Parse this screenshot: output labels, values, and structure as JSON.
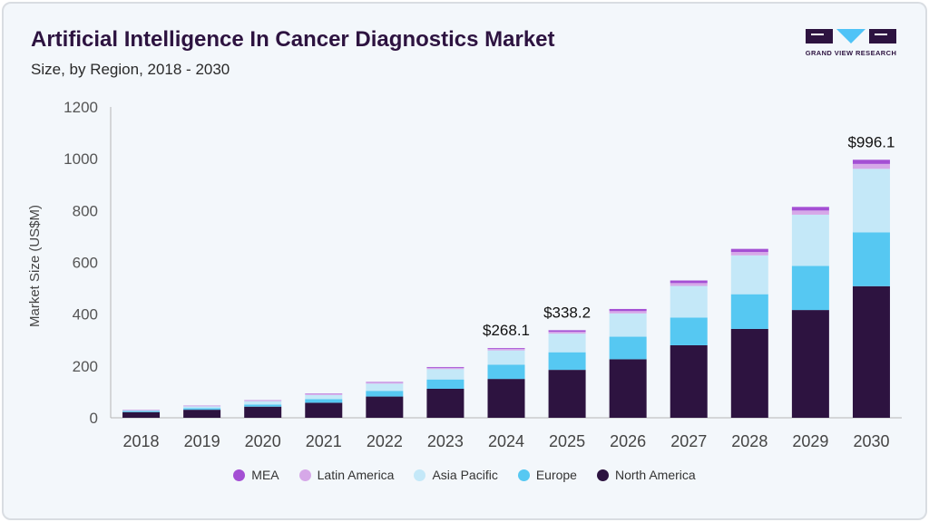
{
  "header": {
    "title": "Artificial Intelligence In Cancer Diagnostics Market",
    "subtitle": "Size, by Region, 2018 - 2030"
  },
  "logo": {
    "brand_text": "GRAND VIEW RESEARCH",
    "colors": {
      "primary": "#2d1340",
      "accent": "#4fc3f7"
    }
  },
  "chart_data": {
    "type": "bar",
    "stacked": true,
    "title": "Artificial Intelligence In Cancer Diagnostics Market",
    "subtitle": "Size, by Region, 2018 - 2030",
    "xlabel": "",
    "ylabel": "Market Size (US$M)",
    "ylim": [
      0,
      1200
    ],
    "yticks": [
      0,
      200,
      400,
      600,
      800,
      1000,
      1200
    ],
    "grid": false,
    "legend_position": "bottom",
    "categories": [
      "2018",
      "2019",
      "2020",
      "2021",
      "2022",
      "2023",
      "2024",
      "2025",
      "2026",
      "2027",
      "2028",
      "2029",
      "2030"
    ],
    "series": [
      {
        "name": "North America",
        "color": "#2d1340",
        "values": [
          22,
          31,
          43,
          58,
          82,
          112,
          150,
          185,
          226,
          280,
          343,
          416,
          508
        ]
      },
      {
        "name": "Europe",
        "color": "#56c8f2",
        "values": [
          4,
          6,
          8,
          14,
          22,
          36,
          55,
          68,
          87,
          107,
          134,
          170,
          208
        ]
      },
      {
        "name": "Asia Pacific",
        "color": "#c4e8f8",
        "values": [
          3,
          7,
          13,
          16,
          28,
          40,
          55,
          72,
          90,
          122,
          150,
          198,
          245
        ]
      },
      {
        "name": "Latin America",
        "color": "#d6a8e8",
        "values": [
          1,
          2,
          3,
          3,
          4,
          5,
          6,
          7,
          9,
          11,
          13,
          16,
          19
        ]
      },
      {
        "name": "MEA",
        "color": "#a44fd4",
        "values": [
          1,
          1,
          1,
          2,
          2,
          3,
          3,
          6,
          8,
          10,
          12,
          14,
          16
        ]
      }
    ],
    "data_labels": [
      {
        "category": "2024",
        "text": "$268.1"
      },
      {
        "category": "2025",
        "text": "$338.2"
      },
      {
        "category": "2030",
        "text": "$996.1"
      }
    ],
    "legend_order": [
      "MEA",
      "Latin America",
      "Asia Pacific",
      "Europe",
      "North America"
    ]
  }
}
